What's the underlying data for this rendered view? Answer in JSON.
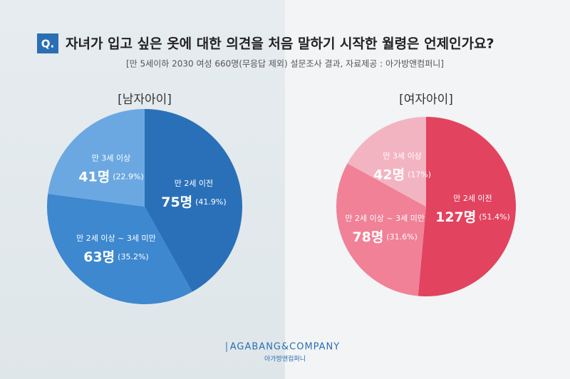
{
  "header": {
    "badge": "Q.",
    "title": "자녀가 입고 싶은 옷에 대한 의견을 처음 말하기 시작한 월령은 언제인가요?",
    "subtitle": "[만 5세이하 2030 여성 660명(무응답 제외) 설문조사 결과, 자료제공 : 아가방앤컴퍼니]"
  },
  "chart_data": [
    {
      "type": "pie",
      "title": "[남자아이]",
      "categories": [
        "만 2세 이전",
        "만 2세 이상 ~ 3세 미만",
        "만 3세 이상"
      ],
      "values": [
        75,
        63,
        41
      ],
      "value_labels": [
        "75명",
        "63명",
        "41명"
      ],
      "percents": [
        41.9,
        35.2,
        22.9
      ],
      "percent_labels": [
        "(41.9%)",
        "(35.2%)",
        "(22.9%)"
      ],
      "colors": [
        "#2a70b9",
        "#3d88cf",
        "#6ba8e1"
      ]
    },
    {
      "type": "pie",
      "title": "[여자아이]",
      "categories": [
        "만 2세 이전",
        "만 2세 이상 ~ 3세 미만",
        "만 3세 이상"
      ],
      "values": [
        127,
        78,
        42
      ],
      "value_labels": [
        "127명",
        "78명",
        "42명"
      ],
      "percents": [
        51.4,
        31.6,
        17
      ],
      "percent_labels": [
        "(51.4%)",
        "(31.6%)",
        "(17%)"
      ],
      "colors": [
        "#e2435f",
        "#f08197",
        "#f3b4c1"
      ]
    }
  ],
  "footer": {
    "brand": "AGABANG&COMPANY",
    "brand_kr": "아가방앤컴퍼니"
  }
}
